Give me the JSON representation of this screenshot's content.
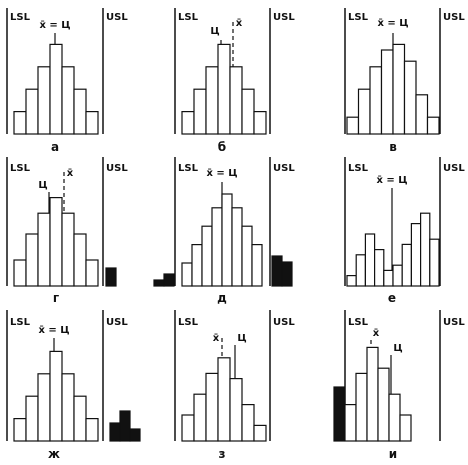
{
  "figure": {
    "panels": [
      {
        "id": "a",
        "letter": "а",
        "lsl_label": "LSL",
        "usl_label": "USL",
        "center_label": "x̄ = Ц",
        "mean_label": "",
        "bars": [
          4,
          8,
          12,
          16,
          12,
          8,
          4
        ],
        "out_left": [],
        "out_right": []
      },
      {
        "id": "b",
        "letter": "б",
        "lsl_label": "LSL",
        "usl_label": "USL",
        "center_label": "Ц",
        "mean_label": "x̄",
        "bars": [
          4,
          8,
          12,
          16,
          12,
          8,
          4
        ],
        "out_left": [],
        "out_right": []
      },
      {
        "id": "v",
        "letter": "в",
        "lsl_label": "LSL",
        "usl_label": "USL",
        "center_label": "x̄ = Ц",
        "mean_label": "",
        "bars": [
          3,
          8,
          12,
          15,
          16,
          13,
          7,
          3
        ],
        "out_left": [],
        "out_right": []
      },
      {
        "id": "g",
        "letter": "г",
        "lsl_label": "LSL",
        "usl_label": "USL",
        "center_label": "Ц",
        "mean_label": "x̄",
        "bars": [
          5,
          10,
          14,
          17,
          14,
          10,
          5
        ],
        "out_left": [],
        "out_right": [
          3
        ]
      },
      {
        "id": "d",
        "letter": "д",
        "lsl_label": "LSL",
        "usl_label": "USL",
        "center_label": "x̄ = Ц",
        "mean_label": "",
        "bars": [
          5,
          9,
          13,
          17,
          20,
          17,
          13,
          9
        ],
        "out_left": [
          1,
          2
        ],
        "out_right": [
          5,
          4
        ]
      },
      {
        "id": "e",
        "letter": "е",
        "lsl_label": "LSL",
        "usl_label": "USL",
        "center_label": "x̄ = Ц",
        "mean_label": "",
        "bars": [
          2,
          6,
          10,
          7,
          3,
          4,
          8,
          12,
          14,
          9
        ],
        "out_left": [],
        "out_right": []
      },
      {
        "id": "zh",
        "letter": "ж",
        "lsl_label": "LSL",
        "usl_label": "USL",
        "center_label": "x̄ = Ц",
        "mean_label": "",
        "bars": [
          4,
          8,
          12,
          16,
          12,
          8,
          4
        ],
        "out_left": [],
        "out_right": [
          3,
          5,
          2
        ]
      },
      {
        "id": "z",
        "letter": "з",
        "lsl_label": "LSL",
        "usl_label": "USL",
        "center_label": "Ц",
        "mean_label": "x̄",
        "bars": [
          5,
          9,
          13,
          16,
          12,
          7,
          3
        ],
        "out_left": [],
        "out_right": []
      },
      {
        "id": "i",
        "letter": "и",
        "lsl_label": "LSL",
        "usl_label": "USL",
        "center_label": "Ц",
        "mean_label": "x̄",
        "bars": [
          7,
          13,
          18,
          14,
          9,
          5
        ],
        "out_left": [
          9
        ],
        "out_right": []
      }
    ]
  }
}
